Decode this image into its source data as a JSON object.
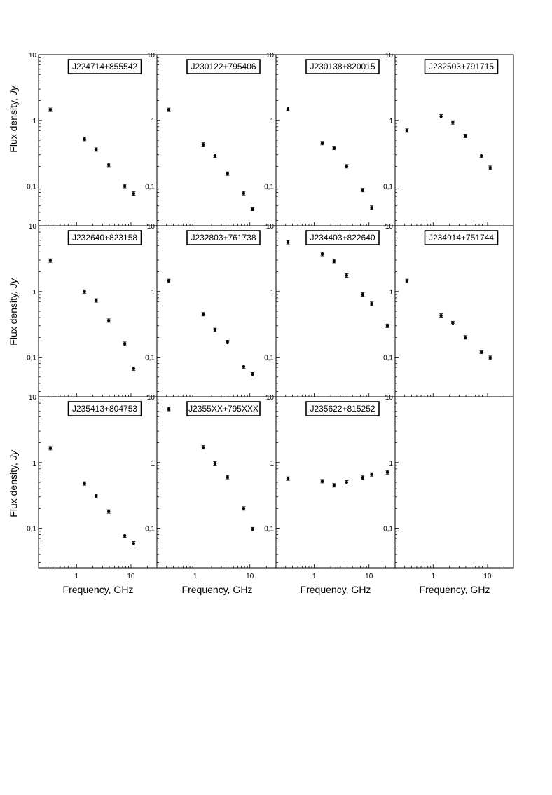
{
  "figure": {
    "ylabel_prefix": "Flux density, ",
    "ylabel_unit": "Jy",
    "xlabel": "Frequency, GHz",
    "x_tick_labels": [
      "1",
      "10"
    ],
    "y_tick_labels": [
      "0,1",
      "1",
      "10"
    ]
  },
  "chart_data": [
    {
      "type": "scatter",
      "name": "J224714+855542",
      "x": [
        0.33,
        1.4,
        2.3,
        3.9,
        7.7,
        11.2
      ],
      "y": [
        1.45,
        0.52,
        0.36,
        0.21,
        0.1,
        0.077
      ],
      "xscale": "log",
      "yscale": "log",
      "xlim": [
        0.2,
        30
      ],
      "ylim": [
        0.025,
        10
      ]
    },
    {
      "type": "scatter",
      "name": "J230122+795406",
      "x": [
        0.33,
        1.4,
        2.3,
        3.9,
        7.7,
        11.2
      ],
      "y": [
        1.45,
        0.43,
        0.29,
        0.155,
        0.078,
        0.045
      ],
      "xscale": "log",
      "yscale": "log",
      "xlim": [
        0.2,
        30
      ],
      "ylim": [
        0.025,
        10
      ]
    },
    {
      "type": "scatter",
      "name": "J230138+820015",
      "x": [
        0.33,
        1.4,
        2.3,
        3.9,
        7.7,
        11.2
      ],
      "y": [
        1.5,
        0.45,
        0.38,
        0.2,
        0.087,
        0.047
      ],
      "xscale": "log",
      "yscale": "log",
      "xlim": [
        0.2,
        30
      ],
      "ylim": [
        0.025,
        10
      ]
    },
    {
      "type": "scatter",
      "name": "J232503+791715",
      "x": [
        0.33,
        1.4,
        2.3,
        3.9,
        7.7,
        11.2
      ],
      "y": [
        0.7,
        1.15,
        0.93,
        0.58,
        0.29,
        0.19
      ],
      "xscale": "log",
      "yscale": "log",
      "xlim": [
        0.2,
        30
      ],
      "ylim": [
        0.025,
        10
      ]
    },
    {
      "type": "scatter",
      "name": "J232640+823158",
      "x": [
        0.33,
        1.4,
        2.3,
        3.9,
        7.7,
        11.2
      ],
      "y": [
        2.95,
        1.0,
        0.73,
        0.36,
        0.16,
        0.067
      ],
      "xscale": "log",
      "yscale": "log",
      "xlim": [
        0.2,
        30
      ],
      "ylim": [
        0.025,
        10
      ]
    },
    {
      "type": "scatter",
      "name": "J232803+761738",
      "x": [
        0.33,
        1.4,
        2.3,
        3.9,
        7.7,
        11.2
      ],
      "y": [
        1.45,
        0.45,
        0.26,
        0.17,
        0.072,
        0.055
      ],
      "xscale": "log",
      "yscale": "log",
      "xlim": [
        0.2,
        30
      ],
      "ylim": [
        0.025,
        10
      ]
    },
    {
      "type": "scatter",
      "name": "J234403+822640",
      "x": [
        0.33,
        1.4,
        2.3,
        3.9,
        7.7,
        11.2,
        21.7
      ],
      "y": [
        5.6,
        3.7,
        2.9,
        1.75,
        0.9,
        0.65,
        0.3
      ],
      "xscale": "log",
      "yscale": "log",
      "xlim": [
        0.2,
        30
      ],
      "ylim": [
        0.025,
        10
      ]
    },
    {
      "type": "scatter",
      "name": "J234914+751744",
      "x": [
        0.33,
        1.4,
        2.3,
        3.9,
        7.7,
        11.2
      ],
      "y": [
        1.45,
        0.43,
        0.33,
        0.2,
        0.12,
        0.098
      ],
      "xscale": "log",
      "yscale": "log",
      "xlim": [
        0.2,
        30
      ],
      "ylim": [
        0.025,
        10
      ]
    },
    {
      "type": "scatter",
      "name": "J235413+804753",
      "x": [
        0.33,
        1.4,
        2.3,
        3.9,
        7.7,
        11.2
      ],
      "y": [
        1.65,
        0.48,
        0.31,
        0.18,
        0.077,
        0.059
      ],
      "xscale": "log",
      "yscale": "log",
      "xlim": [
        0.2,
        30
      ],
      "ylim": [
        0.025,
        10
      ]
    },
    {
      "type": "scatter",
      "name": "J2355XX+795XXX",
      "x": [
        0.33,
        1.4,
        2.3,
        3.9,
        7.7,
        11.2
      ],
      "y": [
        6.5,
        1.7,
        0.97,
        0.6,
        0.2,
        0.097
      ],
      "xscale": "log",
      "yscale": "log",
      "xlim": [
        0.2,
        30
      ],
      "ylim": [
        0.025,
        10
      ]
    },
    {
      "type": "scatter",
      "name": "J235622+815252",
      "x": [
        0.33,
        1.4,
        2.3,
        3.9,
        7.7,
        11.2,
        21.7
      ],
      "y": [
        0.57,
        0.52,
        0.45,
        0.5,
        0.59,
        0.66,
        0.71
      ],
      "xscale": "log",
      "yscale": "log",
      "xlim": [
        0.2,
        30
      ],
      "ylim": [
        0.025,
        10
      ]
    },
    {
      "type": "scatter",
      "name": "",
      "x": [],
      "y": [],
      "xscale": "log",
      "yscale": "log",
      "xlim": [
        0.2,
        30
      ],
      "ylim": [
        0.025,
        10
      ]
    }
  ]
}
